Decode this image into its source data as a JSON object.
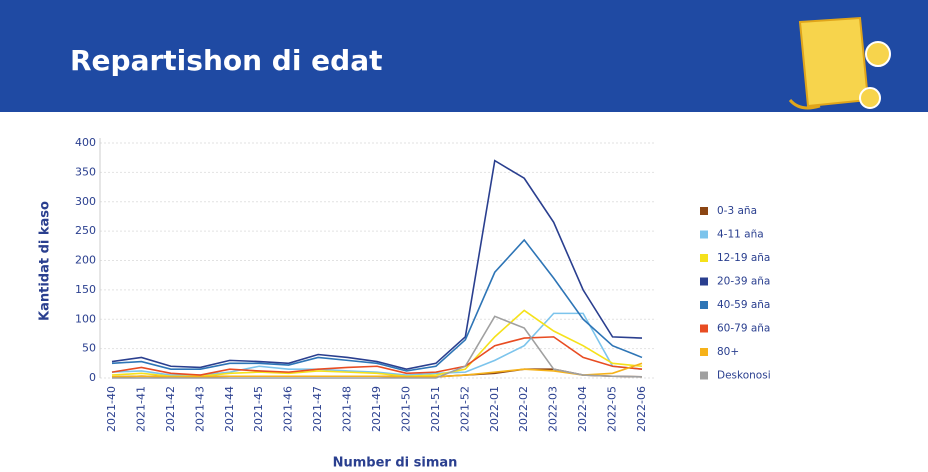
{
  "chart_data": {
    "type": "line",
    "title": "Repartishon di edat",
    "xlabel": "Number di siman",
    "ylabel": "Kantidat di kaso",
    "categories": [
      "2021-40",
      "2021-41",
      "2021-42",
      "2021-43",
      "2021-44",
      "2021-45",
      "2021-46",
      "2021-47",
      "2021-48",
      "2021-49",
      "2021-50",
      "2021-51",
      "2021-52",
      "2022-01",
      "2022-02",
      "2022-03",
      "2022-04",
      "2022-05",
      "2022-06"
    ],
    "ylim": [
      0,
      400
    ],
    "yticks": [
      0,
      50,
      100,
      150,
      200,
      250,
      300,
      350,
      400
    ],
    "grid": true,
    "legend": "right",
    "series": [
      {
        "name": "0-3 aña",
        "color": "#8b4513",
        "values": [
          2,
          3,
          2,
          2,
          3,
          3,
          3,
          3,
          3,
          3,
          2,
          2,
          5,
          8,
          15,
          15,
          5,
          3,
          2
        ]
      },
      {
        "name": "4-11 aña",
        "color": "#7cc4ec",
        "values": [
          10,
          12,
          5,
          5,
          10,
          20,
          15,
          15,
          12,
          10,
          5,
          8,
          10,
          30,
          55,
          110,
          110,
          20,
          15
        ]
      },
      {
        "name": "12-19 aña",
        "color": "#f5e11b",
        "values": [
          5,
          8,
          3,
          3,
          8,
          10,
          8,
          12,
          10,
          8,
          3,
          5,
          15,
          70,
          115,
          80,
          55,
          25,
          20
        ]
      },
      {
        "name": "20-39 aña",
        "color": "#2a3f8f",
        "values": [
          28,
          35,
          20,
          18,
          30,
          28,
          25,
          40,
          35,
          28,
          15,
          25,
          70,
          370,
          340,
          265,
          150,
          70,
          68
        ]
      },
      {
        "name": "40-59 aña",
        "color": "#2e75b6",
        "values": [
          25,
          28,
          15,
          15,
          25,
          25,
          22,
          35,
          30,
          25,
          12,
          20,
          65,
          180,
          235,
          170,
          100,
          55,
          35
        ]
      },
      {
        "name": "60-79 aña",
        "color": "#e84c22",
        "values": [
          10,
          18,
          8,
          5,
          15,
          12,
          10,
          15,
          18,
          20,
          8,
          10,
          20,
          55,
          68,
          70,
          35,
          20,
          15
        ]
      },
      {
        "name": "80+",
        "color": "#f6b21a",
        "values": [
          2,
          3,
          2,
          2,
          3,
          3,
          3,
          3,
          3,
          3,
          2,
          2,
          5,
          10,
          15,
          12,
          5,
          8,
          25
        ]
      },
      {
        "name": "Deskonosi",
        "color": "#a0a0a0",
        "values": [
          0,
          0,
          0,
          0,
          0,
          0,
          0,
          0,
          0,
          0,
          0,
          0,
          20,
          105,
          85,
          15,
          5,
          3,
          2
        ]
      }
    ]
  }
}
